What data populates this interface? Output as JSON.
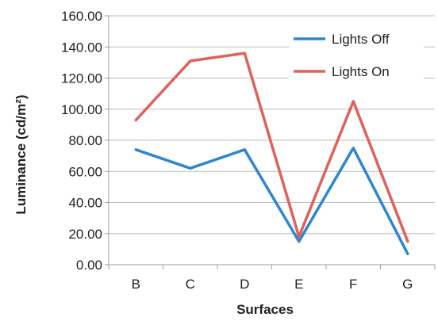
{
  "chart_data": {
    "type": "line",
    "title": "",
    "xlabel": "Surfaces",
    "ylabel": "Luminance (cd/m²)",
    "categories": [
      "B",
      "C",
      "D",
      "E",
      "F",
      "G"
    ],
    "ylim": [
      0,
      160
    ],
    "yticks": [
      "0.00",
      "20.00",
      "40.00",
      "60.00",
      "80.00",
      "100.00",
      "120.00",
      "140.00",
      "160.00"
    ],
    "grid": true,
    "legend_position": "top-right",
    "series": [
      {
        "name": "Lights Off",
        "color": "#2e86d1",
        "values": [
          74,
          62,
          74,
          15,
          75,
          7
        ]
      },
      {
        "name": "Lights On",
        "color": "#e0605a",
        "values": [
          93,
          131,
          136,
          18,
          105,
          15
        ]
      }
    ]
  }
}
